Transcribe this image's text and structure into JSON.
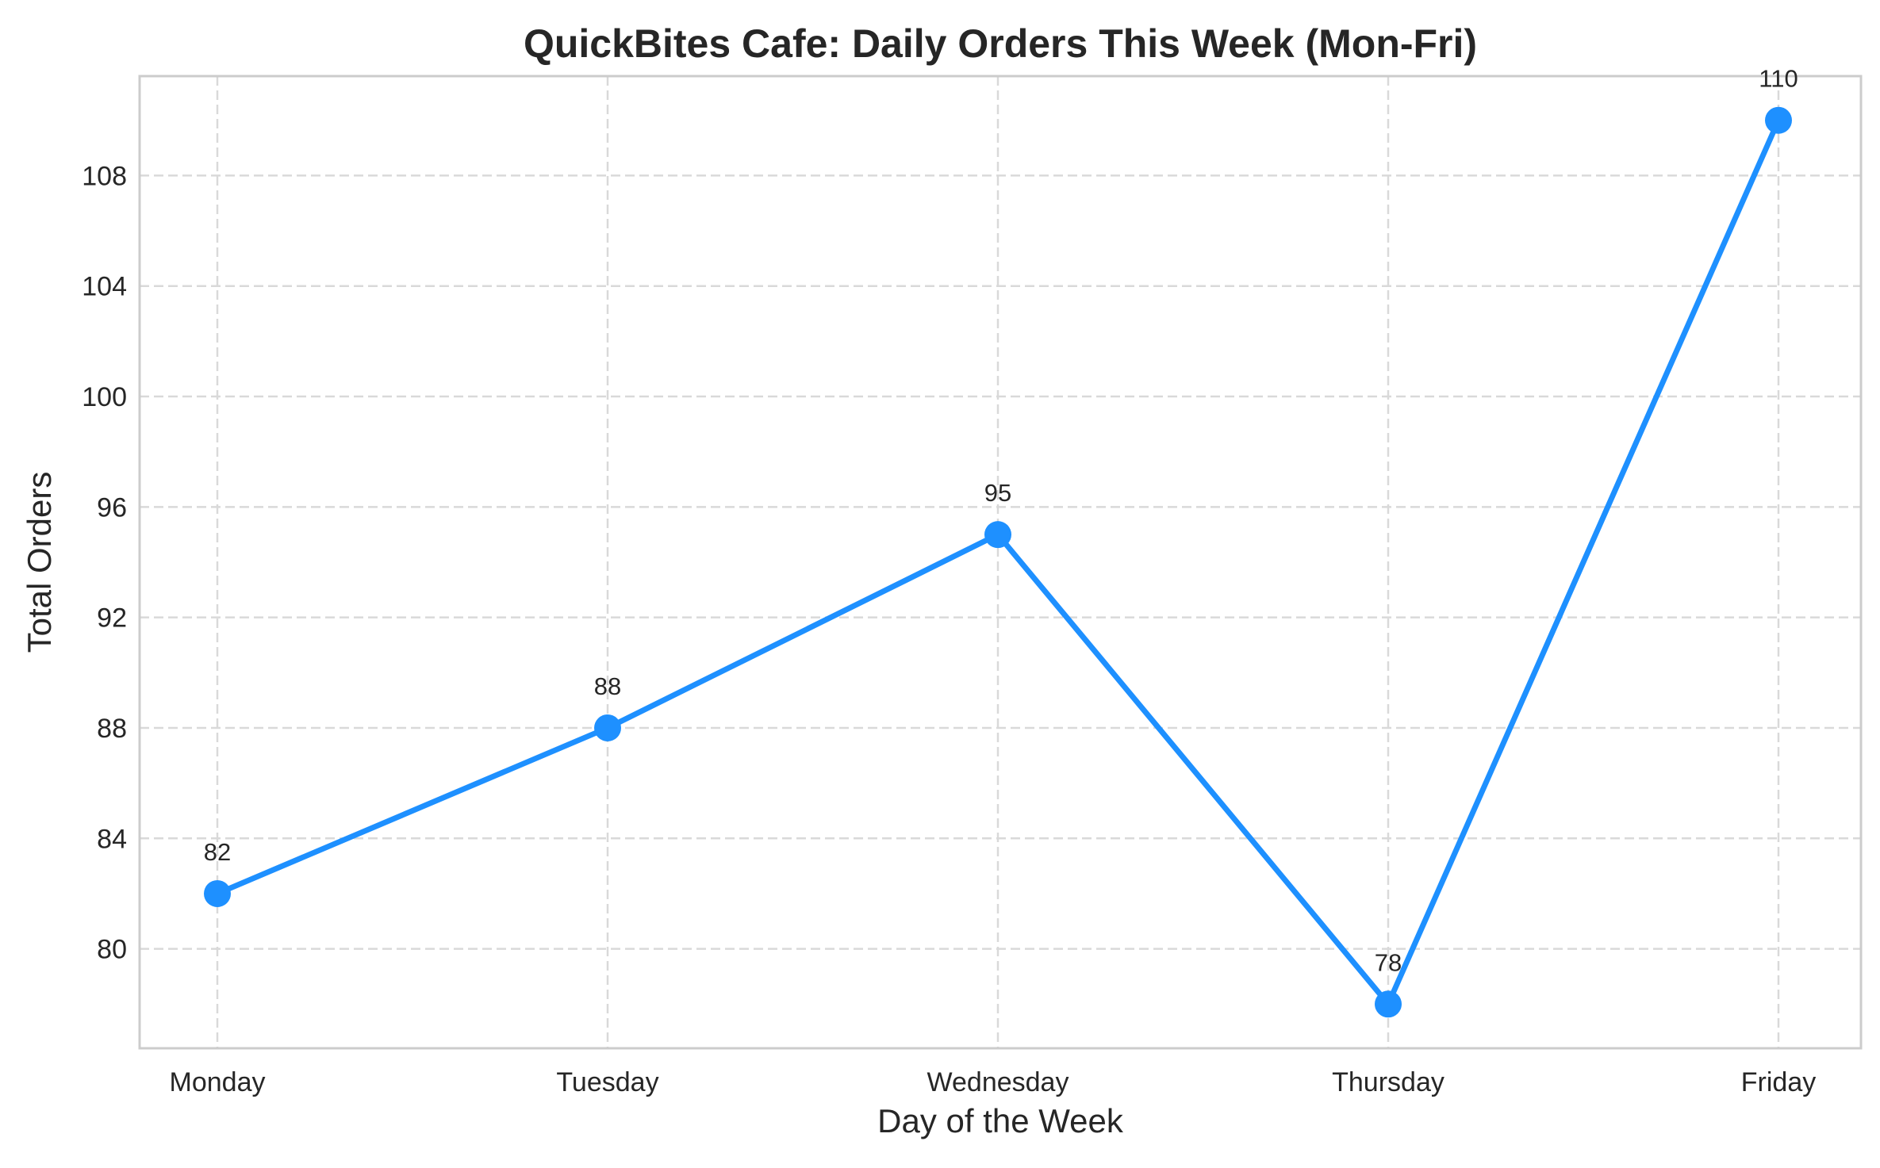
{
  "chart_data": {
    "type": "line",
    "title": "QuickBites Cafe: Daily Orders This Week (Mon-Fri)",
    "xlabel": "Day of the Week",
    "ylabel": "Total Orders",
    "categories": [
      "Monday",
      "Tuesday",
      "Wednesday",
      "Thursday",
      "Friday"
    ],
    "series": [
      {
        "values": [
          82,
          88,
          95,
          78,
          110
        ],
        "color": "#1E90FF"
      }
    ],
    "data_labels": [
      "82",
      "88",
      "95",
      "78",
      "110"
    ],
    "yticks": [
      80,
      84,
      88,
      92,
      96,
      100,
      104,
      108
    ],
    "ytick_labels": [
      "80",
      "84",
      "88",
      "92",
      "96",
      "100",
      "104",
      "108"
    ],
    "ylim": [
      76.4,
      111.6
    ],
    "grid": true,
    "grid_style": "dashed",
    "legend": "none",
    "colors": {
      "line": "#1E90FF",
      "text": "#262626",
      "grid": "#D9D9D9",
      "frame": "#CCCCCC"
    }
  }
}
